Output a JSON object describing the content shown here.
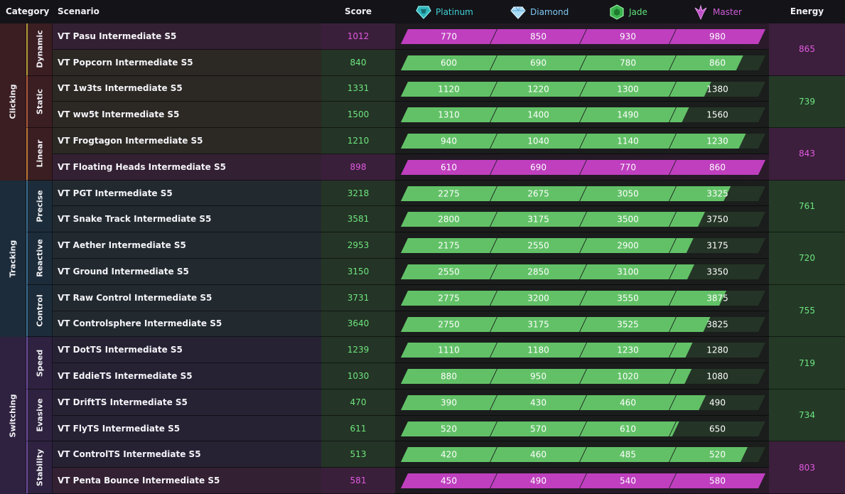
{
  "header": {
    "category": "Category",
    "scenario": "Scenario",
    "score": "Score",
    "energy": "Energy",
    "ranks": [
      {
        "label": "Platinum",
        "color": "#3fd0d6",
        "icon": "platinum-gem-icon"
      },
      {
        "label": "Diamond",
        "color": "#7fc6f2",
        "icon": "diamond-gem-icon"
      },
      {
        "label": "Jade",
        "color": "#5fe07a",
        "icon": "jade-gem-icon"
      },
      {
        "label": "Master",
        "color": "#d05bd8",
        "icon": "master-crest-icon"
      }
    ]
  },
  "colors": {
    "green_text": "#6ee57f",
    "pink_text": "#e05ae0",
    "bar_green": "#62c167",
    "bar_pink": "#bf3fbf",
    "bar_track": "#2a3a2c"
  },
  "categories": [
    {
      "name": "Clicking",
      "bg": "#3a1e22",
      "subs": [
        {
          "name": "Dynamic",
          "accent": "#b39b3a",
          "energy": "865",
          "energy_state": "pink",
          "rows": [
            {
              "scenario": "VT Pasu Intermediate S5",
              "score": "1012",
              "state": "pink",
              "thresholds": [
                "770",
                "850",
                "930",
                "980"
              ],
              "fill": 1.0
            },
            {
              "scenario": "VT Popcorn Intermediate S5",
              "score": "840",
              "state": "green",
              "thresholds": [
                "600",
                "690",
                "780",
                "860"
              ],
              "fill": 0.75
            }
          ]
        },
        {
          "name": "Static",
          "accent": "#b05a3a",
          "energy": "739",
          "energy_state": "green",
          "rows": [
            {
              "scenario": "VT 1w3ts Intermediate S5",
              "score": "1331",
              "state": "green",
              "thresholds": [
                "1120",
                "1220",
                "1300",
                "1380"
              ],
              "fill": 0.39
            },
            {
              "scenario": "VT ww5t Intermediate S5",
              "score": "1500",
              "state": "green",
              "thresholds": [
                "1310",
                "1400",
                "1490",
                "1560"
              ],
              "fill": 0.14
            }
          ]
        },
        {
          "name": "Linear",
          "accent": "#c0763a",
          "energy": "843",
          "energy_state": "pink",
          "rows": [
            {
              "scenario": "VT Frogtagon Intermediate S5",
              "score": "1210",
              "state": "green",
              "thresholds": [
                "940",
                "1040",
                "1140",
                "1230"
              ],
              "fill": 0.78
            },
            {
              "scenario": "VT Floating Heads Intermediate S5",
              "score": "898",
              "state": "pink",
              "thresholds": [
                "610",
                "690",
                "770",
                "860"
              ],
              "fill": 1.0
            }
          ]
        }
      ]
    },
    {
      "name": "Tracking",
      "bg": "#1c2c3a",
      "subs": [
        {
          "name": "Precise",
          "accent": "#3a6a8a",
          "energy": "761",
          "energy_state": "green",
          "rows": [
            {
              "scenario": "VT PGT Intermediate S5",
              "score": "3218",
              "state": "green",
              "thresholds": [
                "2275",
                "2675",
                "3050",
                "3325"
              ],
              "fill": 0.61
            },
            {
              "scenario": "VT Snake Track Intermediate S5",
              "score": "3581",
              "state": "green",
              "thresholds": [
                "2800",
                "3175",
                "3500",
                "3750"
              ],
              "fill": 0.32
            }
          ]
        },
        {
          "name": "Reactive",
          "accent": "#3a6a8a",
          "energy": "720",
          "energy_state": "green",
          "rows": [
            {
              "scenario": "VT Aether Intermediate S5",
              "score": "2953",
              "state": "green",
              "thresholds": [
                "2175",
                "2550",
                "2900",
                "3175"
              ],
              "fill": 0.19
            },
            {
              "scenario": "VT Ground Intermediate S5",
              "score": "3150",
              "state": "green",
              "thresholds": [
                "2550",
                "2850",
                "3100",
                "3350"
              ],
              "fill": 0.2
            }
          ]
        },
        {
          "name": "Control",
          "accent": "#3a6a8a",
          "energy": "755",
          "energy_state": "green",
          "rows": [
            {
              "scenario": "VT Raw Control Intermediate S5",
              "score": "3731",
              "state": "green",
              "thresholds": [
                "2775",
                "3200",
                "3550",
                "3875"
              ],
              "fill": 0.56
            },
            {
              "scenario": "VT Controlsphere Intermediate S5",
              "score": "3640",
              "state": "green",
              "thresholds": [
                "2750",
                "3175",
                "3525",
                "3825"
              ],
              "fill": 0.38
            }
          ]
        }
      ]
    },
    {
      "name": "Switching",
      "bg": "#2e2240",
      "subs": [
        {
          "name": "Speed",
          "accent": "#6a4a9a",
          "energy": "719",
          "energy_state": "green",
          "rows": [
            {
              "scenario": "VT DotTS Intermediate S5",
              "score": "1239",
              "state": "green",
              "thresholds": [
                "1110",
                "1180",
                "1230",
                "1280"
              ],
              "fill": 0.18
            },
            {
              "scenario": "VT EddieTS Intermediate S5",
              "score": "1030",
              "state": "green",
              "thresholds": [
                "880",
                "950",
                "1020",
                "1080"
              ],
              "fill": 0.17
            }
          ]
        },
        {
          "name": "Evasive",
          "accent": "#6a4a9a",
          "energy": "734",
          "energy_state": "green",
          "rows": [
            {
              "scenario": "VT DriftTS Intermediate S5",
              "score": "470",
              "state": "green",
              "thresholds": [
                "390",
                "430",
                "460",
                "490"
              ],
              "fill": 0.33
            },
            {
              "scenario": "VT FlyTS Intermediate S5",
              "score": "611",
              "state": "green",
              "thresholds": [
                "520",
                "570",
                "610",
                "650"
              ],
              "fill": 0.03
            }
          ]
        },
        {
          "name": "Stability",
          "accent": "#6a4a9a",
          "energy": "803",
          "energy_state": "pink",
          "rows": [
            {
              "scenario": "VT ControlTS Intermediate S5",
              "score": "513",
              "state": "green",
              "thresholds": [
                "420",
                "460",
                "485",
                "520"
              ],
              "fill": 0.8
            },
            {
              "scenario": "VT Penta Bounce Intermediate S5",
              "score": "581",
              "state": "pink",
              "thresholds": [
                "450",
                "490",
                "540",
                "580"
              ],
              "fill": 1.0
            }
          ]
        }
      ]
    }
  ]
}
